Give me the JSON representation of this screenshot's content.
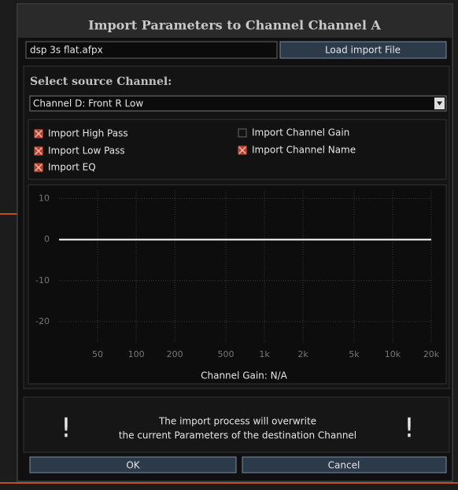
{
  "dialog": {
    "title": "Import Parameters to Channel Channel A",
    "file_name": "dsp 3s flat.afpx",
    "load_button": "Load import File",
    "source_label": "Select source Channel:",
    "source_channel": "Channel D: Front R Low",
    "options": [
      {
        "label": "Import High Pass",
        "checked": true
      },
      {
        "label": "Import Low Pass",
        "checked": true
      },
      {
        "label": "Import EQ",
        "checked": true
      },
      {
        "label": "Import Channel Gain",
        "checked": false
      },
      {
        "label": "Import Channel Name",
        "checked": true
      }
    ],
    "warning_icon": "!",
    "warning_lines": [
      "The import process will overwrite",
      "the current Parameters of the destination Channel"
    ],
    "ok_button": "OK",
    "cancel_button": "Cancel"
  },
  "chart_data": {
    "type": "line",
    "caption": "Channel Gain: N/A",
    "x": [
      25,
      20000
    ],
    "series": [
      {
        "color": "#ffffff",
        "values": [
          0,
          0
        ]
      }
    ],
    "xlim": [
      25,
      20000
    ],
    "xscale": "log",
    "xticks": [
      50,
      100,
      200,
      500,
      {
        "value": 1000,
        "label": "1k"
      },
      {
        "value": 2000,
        "label": "2k"
      },
      {
        "value": 5000,
        "label": "5k"
      },
      {
        "value": 10000,
        "label": "10k"
      },
      {
        "value": 20000,
        "label": "20k"
      }
    ],
    "ylim": [
      -25,
      12
    ],
    "yticks": [
      10,
      0,
      -10,
      -20
    ],
    "grid": true
  }
}
